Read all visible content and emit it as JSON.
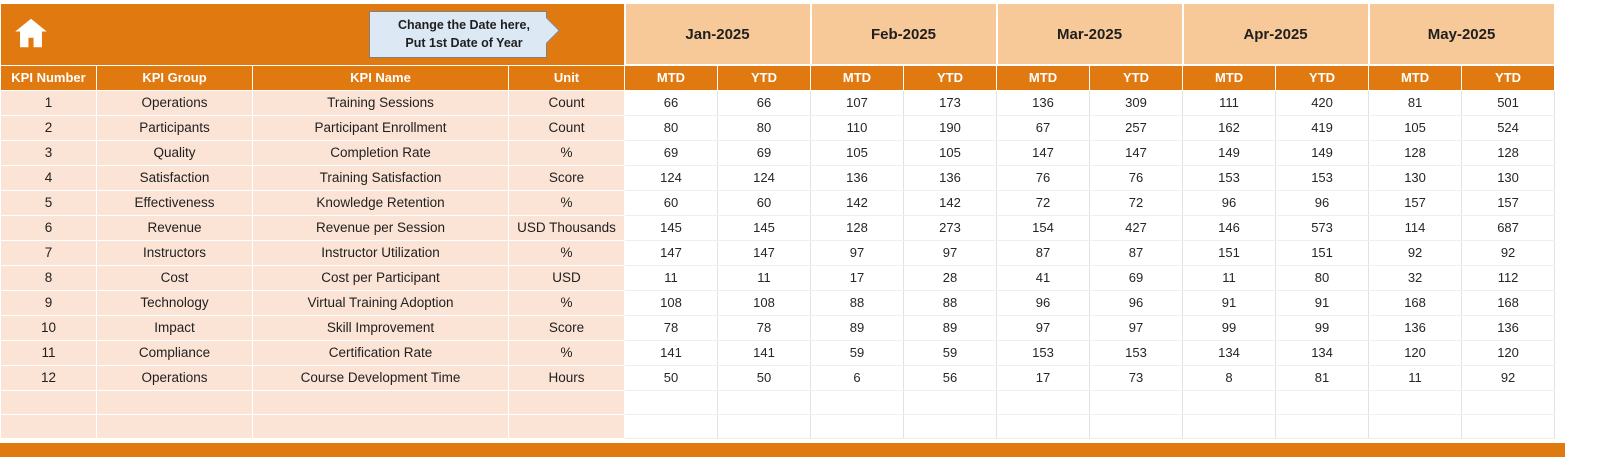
{
  "header": {
    "callout": {
      "line1": "Change the Date here,",
      "line2": "Put 1st Date of Year"
    }
  },
  "table": {
    "months": [
      "Jan-2025",
      "Feb-2025",
      "Mar-2025",
      "Apr-2025",
      "May-2025"
    ],
    "period_headers": [
      "MTD",
      "YTD"
    ],
    "left_headers": [
      "KPI Number",
      "KPI Group",
      "KPI Name",
      "Unit"
    ],
    "rows": [
      {
        "kpi_number": "1",
        "kpi_group": "Operations",
        "kpi_name": "Training Sessions",
        "unit": "Count",
        "values": [
          "66",
          "66",
          "107",
          "173",
          "136",
          "309",
          "111",
          "420",
          "81",
          "501"
        ]
      },
      {
        "kpi_number": "2",
        "kpi_group": "Participants",
        "kpi_name": "Participant Enrollment",
        "unit": "Count",
        "values": [
          "80",
          "80",
          "110",
          "190",
          "67",
          "257",
          "162",
          "419",
          "105",
          "524"
        ]
      },
      {
        "kpi_number": "3",
        "kpi_group": "Quality",
        "kpi_name": "Completion Rate",
        "unit": "%",
        "values": [
          "69",
          "69",
          "105",
          "105",
          "147",
          "147",
          "149",
          "149",
          "128",
          "128"
        ]
      },
      {
        "kpi_number": "4",
        "kpi_group": "Satisfaction",
        "kpi_name": "Training Satisfaction",
        "unit": "Score",
        "values": [
          "124",
          "124",
          "136",
          "136",
          "76",
          "76",
          "153",
          "153",
          "130",
          "130"
        ]
      },
      {
        "kpi_number": "5",
        "kpi_group": "Effectiveness",
        "kpi_name": "Knowledge Retention",
        "unit": "%",
        "values": [
          "60",
          "60",
          "142",
          "142",
          "72",
          "72",
          "96",
          "96",
          "157",
          "157"
        ]
      },
      {
        "kpi_number": "6",
        "kpi_group": "Revenue",
        "kpi_name": "Revenue per Session",
        "unit": "USD Thousands",
        "values": [
          "145",
          "145",
          "128",
          "273",
          "154",
          "427",
          "146",
          "573",
          "114",
          "687"
        ]
      },
      {
        "kpi_number": "7",
        "kpi_group": "Instructors",
        "kpi_name": "Instructor Utilization",
        "unit": "%",
        "values": [
          "147",
          "147",
          "97",
          "97",
          "87",
          "87",
          "151",
          "151",
          "92",
          "92"
        ]
      },
      {
        "kpi_number": "8",
        "kpi_group": "Cost",
        "kpi_name": "Cost per Participant",
        "unit": "USD",
        "values": [
          "11",
          "11",
          "17",
          "28",
          "41",
          "69",
          "11",
          "80",
          "32",
          "112"
        ]
      },
      {
        "kpi_number": "9",
        "kpi_group": "Technology",
        "kpi_name": "Virtual Training Adoption",
        "unit": "%",
        "values": [
          "108",
          "108",
          "88",
          "88",
          "96",
          "96",
          "91",
          "91",
          "168",
          "168"
        ]
      },
      {
        "kpi_number": "10",
        "kpi_group": "Impact",
        "kpi_name": "Skill Improvement",
        "unit": "Score",
        "values": [
          "78",
          "78",
          "89",
          "89",
          "97",
          "97",
          "99",
          "99",
          "136",
          "136"
        ]
      },
      {
        "kpi_number": "11",
        "kpi_group": "Compliance",
        "kpi_name": "Certification Rate",
        "unit": "%",
        "values": [
          "141",
          "141",
          "59",
          "59",
          "153",
          "153",
          "134",
          "134",
          "120",
          "120"
        ]
      },
      {
        "kpi_number": "12",
        "kpi_group": "Operations",
        "kpi_name": "Course Development Time",
        "unit": "Hours",
        "values": [
          "50",
          "50",
          "6",
          "56",
          "17",
          "73",
          "8",
          "81",
          "11",
          "92"
        ]
      }
    ],
    "empty_rows": 2
  },
  "colors": {
    "accent_orange": "#e0790f",
    "month_band_peach": "#f7c998",
    "left_area_peach": "#fbe3d5",
    "callout_blue": "#dce9f5"
  }
}
